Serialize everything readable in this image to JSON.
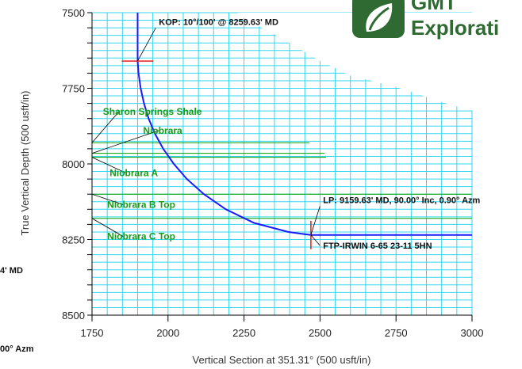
{
  "chart_data": {
    "type": "line",
    "xlabel": "Vertical Section at 351.31° (500 usft/in)",
    "ylabel": "True Vertical Depth (500 usft/in)",
    "xlim": [
      1750,
      3000
    ],
    "ylim": [
      7500,
      8500
    ],
    "y_inverted": true,
    "x_ticks": [
      1750,
      2000,
      2250,
      2500,
      2750,
      3000
    ],
    "y_ticks": [
      7500,
      7750,
      8000,
      8250,
      8500
    ],
    "x_tick_labels": [
      "1750",
      "2000",
      "2250",
      "2500",
      "2750",
      "3000"
    ],
    "y_tick_labels": [
      "7500",
      "7750",
      "8000",
      "8250",
      "8500"
    ],
    "grid": true,
    "grid_color": "#33d6f0",
    "series": [
      {
        "color": "#1a1aff",
        "points": [
          [
            1900,
            7500
          ],
          [
            1900,
            7660
          ],
          [
            1903,
            7700
          ],
          [
            1910,
            7750
          ],
          [
            1921,
            7800
          ],
          [
            1936,
            7850
          ],
          [
            1957,
            7900
          ],
          [
            1984,
            7950
          ],
          [
            2019,
            8000
          ],
          [
            2062,
            8050
          ],
          [
            2118,
            8100
          ],
          [
            2190,
            8150
          ],
          [
            2283,
            8195
          ],
          [
            2395,
            8225
          ],
          [
            2470,
            8235
          ],
          [
            2600,
            8235
          ],
          [
            3000,
            8235
          ]
        ]
      }
    ],
    "formation_lines": [
      {
        "tvd": 7930,
        "x_end": 2465,
        "color": "#00a000"
      },
      {
        "tvd": 7965,
        "x_end": 2515,
        "color": "#00a000"
      },
      {
        "tvd": 7978,
        "x_end": 2520,
        "color": "#00a000"
      },
      {
        "tvd": 8100,
        "x_end": 3000,
        "color": "#00a000"
      },
      {
        "tvd": 8180,
        "x_end": 3000,
        "color": "#00a000"
      }
    ],
    "formation_labels": [
      {
        "text": "Sharon Springs Shale",
        "x": 1786,
        "tvd": 7838,
        "leader_to": [
          1750,
          7930
        ]
      },
      {
        "text": "Niobrara",
        "x": 1918,
        "tvd": 7900,
        "leader_to": [
          1750,
          7965
        ]
      },
      {
        "text": "Niobrara A",
        "x": 1808,
        "tvd": 8040,
        "leader_to": [
          1750,
          7978
        ]
      },
      {
        "text": "Niobrara B Top",
        "x": 1800,
        "tvd": 8145,
        "leader_to": [
          1750,
          8100
        ]
      },
      {
        "text": "Niobrara C Top",
        "x": 1800,
        "tvd": 8250,
        "leader_to": [
          1750,
          8180
        ]
      }
    ],
    "annotations": [
      {
        "text": "KOP: 10°/100' @ 8259.63' MD",
        "x": 1970,
        "tvd": 7540,
        "anchor": [
          1900,
          7660
        ],
        "marker": "h"
      },
      {
        "text": "LP:  9159.63' MD, 90.00° Inc, 0.90° Azm",
        "x": 2510,
        "tvd": 8130,
        "anchor": [
          2470,
          8235
        ],
        "marker": "v"
      },
      {
        "text": "FTP-IRWIN 6-65 23-11 5HN",
        "x": 2510,
        "tvd": 8280,
        "anchor": [
          2470,
          8235
        ],
        "marker": "none"
      }
    ],
    "clipped_left_text": [
      "4' MD",
      "00° Azm"
    ]
  },
  "logo": {
    "line1": "GMT",
    "line2": "Explorati"
  }
}
